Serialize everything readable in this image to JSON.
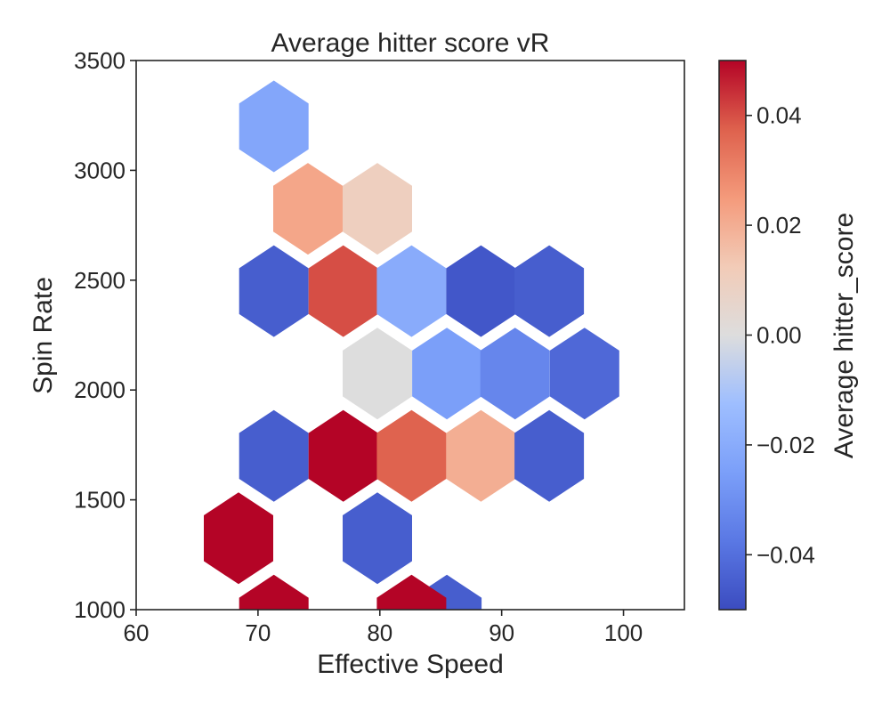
{
  "chart_data": {
    "type": "heatmap",
    "subtype": "hexbin",
    "title": "Average hitter score vR",
    "xlabel": "Effective Speed",
    "ylabel": "Spin Rate",
    "xlim": [
      60,
      105
    ],
    "ylim": [
      1000,
      3500
    ],
    "xticks": [
      "60",
      "70",
      "80",
      "90",
      "100"
    ],
    "yticks": [
      "1000",
      "1500",
      "2000",
      "2500",
      "3000",
      "3500"
    ],
    "grid": false,
    "colormap": "coolwarm",
    "colorbar": {
      "label": "Average hitter_score",
      "vmin": -0.05,
      "vmax": 0.05,
      "ticks": [
        -0.04,
        -0.02,
        0.0,
        0.02,
        0.04
      ],
      "tick_labels": [
        "−0.04",
        "−0.02",
        "0.00",
        "0.02",
        "0.04"
      ]
    },
    "cells": [
      {
        "x": 71.3,
        "y": 3200,
        "value": -0.022
      },
      {
        "x": 74.1,
        "y": 2825,
        "value": 0.022
      },
      {
        "x": 79.8,
        "y": 2825,
        "value": 0.01
      },
      {
        "x": 71.3,
        "y": 2450,
        "value": -0.045
      },
      {
        "x": 77.0,
        "y": 2450,
        "value": 0.04
      },
      {
        "x": 82.6,
        "y": 2450,
        "value": -0.02
      },
      {
        "x": 88.3,
        "y": 2450,
        "value": -0.047
      },
      {
        "x": 93.9,
        "y": 2450,
        "value": -0.045
      },
      {
        "x": 79.8,
        "y": 2075,
        "value": 0.0
      },
      {
        "x": 85.5,
        "y": 2075,
        "value": -0.025
      },
      {
        "x": 91.1,
        "y": 2075,
        "value": -0.033
      },
      {
        "x": 96.8,
        "y": 2075,
        "value": -0.042
      },
      {
        "x": 71.3,
        "y": 1700,
        "value": -0.045
      },
      {
        "x": 77.0,
        "y": 1700,
        "value": 0.05
      },
      {
        "x": 82.6,
        "y": 1700,
        "value": 0.037
      },
      {
        "x": 88.3,
        "y": 1700,
        "value": 0.02
      },
      {
        "x": 93.9,
        "y": 1700,
        "value": -0.045
      },
      {
        "x": 79.8,
        "y": 1325,
        "value": -0.045
      },
      {
        "x": 85.5,
        "y": 950,
        "value": -0.045
      },
      {
        "x": 68.4,
        "y": 1325,
        "value": 0.05
      },
      {
        "x": 71.3,
        "y": 950,
        "value": 0.05
      },
      {
        "x": 82.6,
        "y": 950,
        "value": 0.05
      }
    ]
  }
}
